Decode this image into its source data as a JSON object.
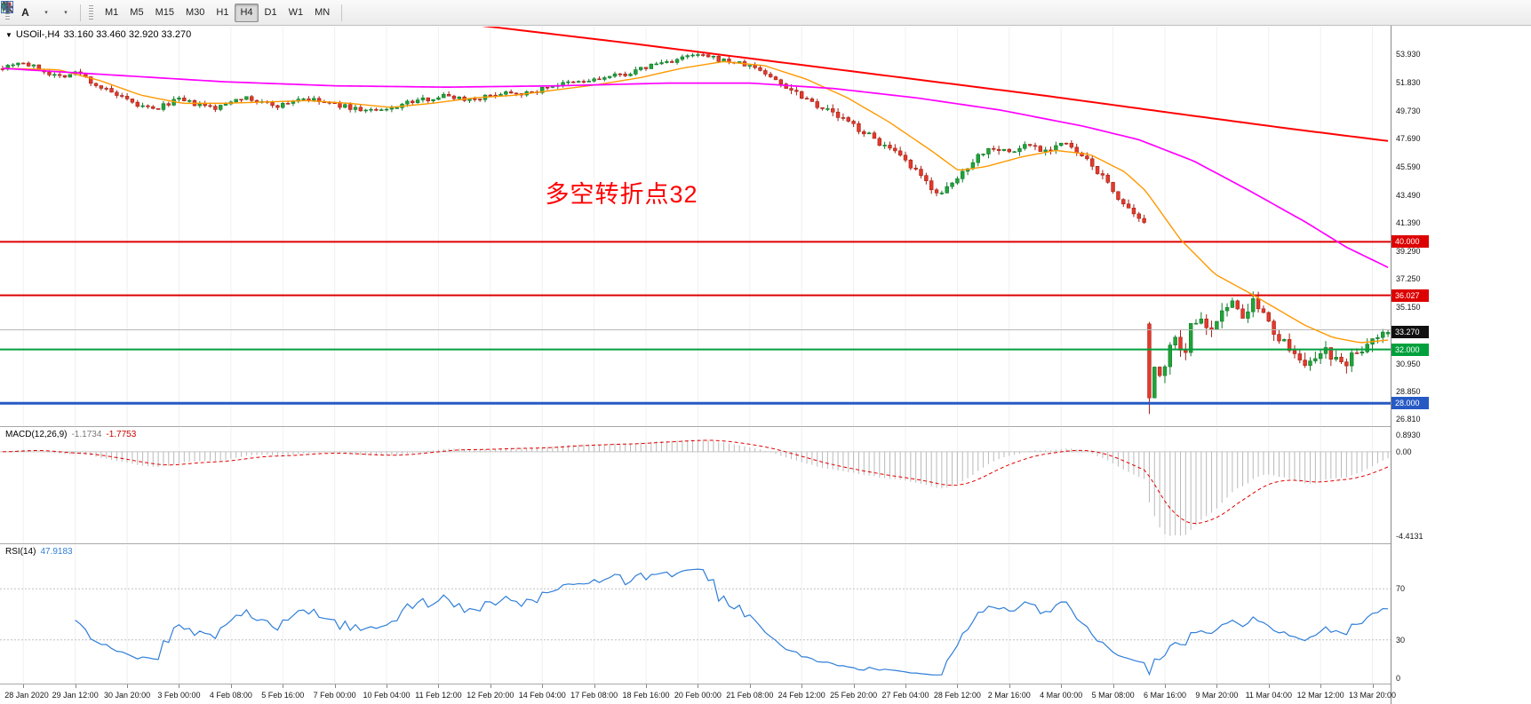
{
  "toolbar": {
    "a_tool_label": "A",
    "caret_glyph": "▾",
    "timeframes": [
      "M1",
      "M5",
      "M15",
      "M30",
      "H1",
      "H4",
      "D1",
      "W1",
      "MN"
    ],
    "active_timeframe": "H4",
    "icons": [
      {
        "name": "candles-icon"
      },
      {
        "name": "zoom-in-icon"
      },
      {
        "name": "zoom-out-icon"
      },
      {
        "name": "tile-windows-icon"
      }
    ]
  },
  "chart": {
    "symbol_period": "USOil-,H4",
    "ohlc_text": "33.160 33.460 32.920 33.270",
    "current_price_label": "33.270",
    "dropdown_glyph": "▼"
  },
  "chart_data": [
    {
      "type": "candlestick",
      "title": "USOil-,H4",
      "ohlc_current": {
        "open": 33.16,
        "high": 33.46,
        "low": 32.92,
        "close": 33.27
      },
      "ylim": [
        26.3,
        56.0
      ],
      "up_color": "#23a338",
      "down_color": "#e33a2c",
      "grid": "vertical-faint",
      "y_axis_labels": [
        "53.930",
        "51.830",
        "49.730",
        "47.690",
        "45.590",
        "43.490",
        "41.390",
        "39.290",
        "37.250",
        "35.150",
        "30.950",
        "28.850",
        "26.810"
      ],
      "x_axis_labels": [
        "28 Jan 2020",
        "29 Jan 12:00",
        "30 Jan 20:00",
        "3 Feb 00:00",
        "4 Feb 08:00",
        "5 Feb 16:00",
        "7 Feb 00:00",
        "10 Feb 04:00",
        "11 Feb 12:00",
        "12 Feb 20:00",
        "14 Feb 04:00",
        "17 Feb 08:00",
        "18 Feb 16:00",
        "20 Feb 00:00",
        "21 Feb 08:00",
        "24 Feb 12:00",
        "25 Feb 20:00",
        "27 Feb 04:00",
        "28 Feb 12:00",
        "2 Mar 16:00",
        "4 Mar 00:00",
        "5 Mar 08:00",
        "6 Mar 16:00",
        "9 Mar 20:00",
        "11 Mar 04:00",
        "12 Mar 12:00",
        "13 Mar 20:00"
      ],
      "horizontal_lines": [
        {
          "price": 40.0,
          "label": "40.000",
          "color": "#dd0000",
          "width": 2
        },
        {
          "price": 36.027,
          "label": "36.027",
          "color": "#dd0000",
          "width": 2
        },
        {
          "price": 33.46,
          "label": "",
          "color": "#b8b8b8",
          "width": 1
        },
        {
          "price": 32.0,
          "label": "32.000",
          "color": "#00a03c",
          "width": 2
        },
        {
          "price": 28.0,
          "label": "28.000",
          "color": "#2659c4",
          "width": 3
        }
      ],
      "current_price": 33.27,
      "annotation": {
        "text": "多空转折点32",
        "color": "#ff0000",
        "x_frac": 0.392,
        "price_top": 45.0
      },
      "price_path": [
        [
          0.0,
          53.0
        ],
        [
          0.012,
          53.4
        ],
        [
          0.025,
          52.9
        ],
        [
          0.04,
          52.3
        ],
        [
          0.055,
          52.6
        ],
        [
          0.065,
          51.8
        ],
        [
          0.08,
          51.0
        ],
        [
          0.095,
          50.2
        ],
        [
          0.11,
          49.8
        ],
        [
          0.125,
          50.6
        ],
        [
          0.14,
          50.2
        ],
        [
          0.155,
          49.9
        ],
        [
          0.17,
          50.8
        ],
        [
          0.185,
          50.4
        ],
        [
          0.2,
          50.1
        ],
        [
          0.215,
          50.7
        ],
        [
          0.23,
          50.4
        ],
        [
          0.245,
          50.1
        ],
        [
          0.26,
          49.8
        ],
        [
          0.275,
          49.7
        ],
        [
          0.29,
          50.3
        ],
        [
          0.305,
          50.6
        ],
        [
          0.32,
          50.9
        ],
        [
          0.335,
          50.6
        ],
        [
          0.35,
          50.8
        ],
        [
          0.365,
          51.2
        ],
        [
          0.38,
          51.0
        ],
        [
          0.395,
          51.6
        ],
        [
          0.41,
          51.8
        ],
        [
          0.425,
          52.0
        ],
        [
          0.44,
          52.3
        ],
        [
          0.455,
          52.6
        ],
        [
          0.47,
          53.2
        ],
        [
          0.485,
          53.5
        ],
        [
          0.5,
          53.9
        ],
        [
          0.515,
          53.6
        ],
        [
          0.53,
          53.3
        ],
        [
          0.545,
          52.9
        ],
        [
          0.558,
          52.0
        ],
        [
          0.572,
          51.2
        ],
        [
          0.585,
          50.4
        ],
        [
          0.6,
          49.5
        ],
        [
          0.615,
          48.6
        ],
        [
          0.63,
          47.6
        ],
        [
          0.645,
          46.5
        ],
        [
          0.658,
          45.3
        ],
        [
          0.67,
          44.1
        ],
        [
          0.678,
          43.5
        ],
        [
          0.69,
          44.8
        ],
        [
          0.702,
          46.3
        ],
        [
          0.715,
          47.1
        ],
        [
          0.728,
          46.6
        ],
        [
          0.74,
          47.3
        ],
        [
          0.752,
          46.8
        ],
        [
          0.765,
          47.4
        ],
        [
          0.778,
          46.4
        ],
        [
          0.79,
          45.3
        ],
        [
          0.803,
          43.6
        ],
        [
          0.815,
          42.0
        ],
        [
          0.8245,
          41.2
        ],
        [
          0.828,
          28.4
        ],
        [
          0.8315,
          30.8
        ],
        [
          0.836,
          29.6
        ],
        [
          0.841,
          31.6
        ],
        [
          0.846,
          33.2
        ],
        [
          0.852,
          31.4
        ],
        [
          0.858,
          33.8
        ],
        [
          0.865,
          34.6
        ],
        [
          0.872,
          33.4
        ],
        [
          0.88,
          34.9
        ],
        [
          0.888,
          35.4
        ],
        [
          0.895,
          34.3
        ],
        [
          0.902,
          35.6
        ],
        [
          0.908,
          34.9
        ],
        [
          0.915,
          33.6
        ],
        [
          0.922,
          33.0
        ],
        [
          0.93,
          32.2
        ],
        [
          0.938,
          31.2
        ],
        [
          0.946,
          30.8
        ],
        [
          0.954,
          31.8
        ],
        [
          0.962,
          31.1
        ],
        [
          0.97,
          30.9
        ],
        [
          0.978,
          31.9
        ],
        [
          0.986,
          32.4
        ],
        [
          0.993,
          32.9
        ],
        [
          1.0,
          33.27
        ]
      ],
      "moving_averages": [
        {
          "name": "ma-fast-orange",
          "color": "#ff9900",
          "width": 1.4,
          "path": [
            [
              0.0,
              52.9
            ],
            [
              0.04,
              52.8
            ],
            [
              0.07,
              52.0
            ],
            [
              0.1,
              50.9
            ],
            [
              0.13,
              50.3
            ],
            [
              0.16,
              50.3
            ],
            [
              0.19,
              50.4
            ],
            [
              0.22,
              50.5
            ],
            [
              0.25,
              50.3
            ],
            [
              0.28,
              50.0
            ],
            [
              0.31,
              50.3
            ],
            [
              0.34,
              50.7
            ],
            [
              0.37,
              50.9
            ],
            [
              0.4,
              51.3
            ],
            [
              0.43,
              51.7
            ],
            [
              0.46,
              52.2
            ],
            [
              0.49,
              52.9
            ],
            [
              0.52,
              53.4
            ],
            [
              0.55,
              53.1
            ],
            [
              0.58,
              52.1
            ],
            [
              0.61,
              50.7
            ],
            [
              0.64,
              48.9
            ],
            [
              0.67,
              46.8
            ],
            [
              0.69,
              45.3
            ],
            [
              0.71,
              45.6
            ],
            [
              0.735,
              46.3
            ],
            [
              0.76,
              46.8
            ],
            [
              0.785,
              46.5
            ],
            [
              0.81,
              45.2
            ],
            [
              0.825,
              43.8
            ],
            [
              0.85,
              40.2
            ],
            [
              0.875,
              37.6
            ],
            [
              0.9,
              36.2
            ],
            [
              0.92,
              35.0
            ],
            [
              0.94,
              33.8
            ],
            [
              0.96,
              32.9
            ],
            [
              0.98,
              32.5
            ],
            [
              1.0,
              32.7
            ]
          ]
        },
        {
          "name": "ma-mid-magenta",
          "color": "#ff00ff",
          "width": 1.7,
          "path": [
            [
              0.0,
              52.9
            ],
            [
              0.08,
              52.4
            ],
            [
              0.16,
              51.9
            ],
            [
              0.24,
              51.6
            ],
            [
              0.32,
              51.5
            ],
            [
              0.4,
              51.6
            ],
            [
              0.48,
              51.8
            ],
            [
              0.54,
              51.8
            ],
            [
              0.6,
              51.4
            ],
            [
              0.66,
              50.7
            ],
            [
              0.72,
              49.8
            ],
            [
              0.78,
              48.6
            ],
            [
              0.82,
              47.6
            ],
            [
              0.86,
              46.0
            ],
            [
              0.9,
              43.8
            ],
            [
              0.94,
              41.5
            ],
            [
              0.97,
              39.6
            ],
            [
              1.0,
              38.1
            ]
          ]
        },
        {
          "name": "ma-slow-red",
          "color": "#ff0000",
          "width": 2,
          "path": [
            [
              0.0,
              59.6
            ],
            [
              0.15,
              58.2
            ],
            [
              0.3,
              56.6
            ],
            [
              0.36,
              55.9
            ],
            [
              0.45,
              54.8
            ],
            [
              0.55,
              53.5
            ],
            [
              0.65,
              52.2
            ],
            [
              0.75,
              50.9
            ],
            [
              0.85,
              49.5
            ],
            [
              0.93,
              48.4
            ],
            [
              1.0,
              47.5
            ]
          ]
        }
      ],
      "candles_gen": {
        "count": 268,
        "seed": 7,
        "label_first_candle": 4,
        "label_step": 10,
        "crash_index": 221,
        "crash": {
          "o": 33.9,
          "h": 34.05,
          "l": 27.2,
          "c": 28.4
        }
      }
    },
    {
      "type": "bar",
      "name": "MACD",
      "label": "MACD(12,26,9)",
      "value_main": "-1.1734",
      "value_signal": "-1.7753",
      "params": {
        "fast": 12,
        "slow": 26,
        "signal": 9
      },
      "y_labels": [
        {
          "v": 0.893,
          "text": "0.8930"
        },
        {
          "v": 0,
          "text": "0.00"
        },
        {
          "v": -4.4131,
          "text": "-4.4131"
        }
      ],
      "min_value": -4.4131,
      "hist_color": "#b9b9b9",
      "signal_color": "#e00000",
      "ylim": [
        -4.8,
        1.25
      ]
    },
    {
      "type": "line",
      "name": "RSI",
      "label": "RSI(14)",
      "value": "47.9183",
      "period": 14,
      "levels": [
        70,
        30
      ],
      "y_labels": [
        {
          "v": 70,
          "text": "70"
        },
        {
          "v": 30,
          "text": "30"
        },
        {
          "v": 0,
          "text": "0"
        }
      ],
      "line_color": "#2f7ed8",
      "level_color": "#c0c0c0",
      "ylim": [
        0,
        100
      ]
    }
  ]
}
